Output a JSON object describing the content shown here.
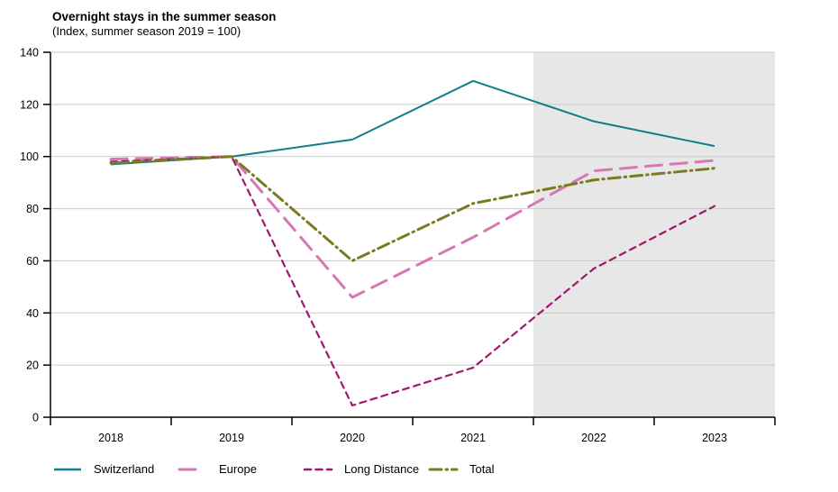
{
  "chart_data": {
    "type": "line",
    "title": "Overnight stays in the summer season",
    "subtitle": "(Index, summer season 2019 = 100)",
    "x": [
      2018,
      2019,
      2020,
      2021,
      2022,
      2023
    ],
    "series": [
      {
        "name": "Switzerland",
        "color": "#117d8d",
        "dash": "",
        "width": 2,
        "values": [
          97,
          100,
          106.5,
          129,
          113.5,
          104
        ]
      },
      {
        "name": "Europe",
        "color": "#d678b5",
        "dash": "18 10",
        "width": 3,
        "values": [
          99,
          100,
          46,
          69,
          94.5,
          98.5
        ]
      },
      {
        "name": "Long Distance",
        "color": "#a1176b",
        "dash": "7 5.5",
        "width": 2.2,
        "values": [
          98,
          100,
          4.5,
          19,
          57,
          81
        ]
      },
      {
        "name": "Total",
        "color": "#7b7a21",
        "dash": "13 5 1.5 5",
        "width": 3,
        "values": [
          97.5,
          100,
          60,
          82,
          91,
          95.5
        ]
      }
    ],
    "xlabel": "",
    "ylabel": "",
    "ylim": [
      0,
      140
    ],
    "yticks": [
      0,
      20,
      40,
      60,
      80,
      100,
      120,
      140
    ],
    "grid": true,
    "gridline_color": "#c9c9c9",
    "axis_color": "#000000",
    "legend_position": "bottom",
    "forecast_region": {
      "from_x": 2021.5,
      "to_x": 2023.5,
      "color": "#e7e7e7"
    }
  }
}
